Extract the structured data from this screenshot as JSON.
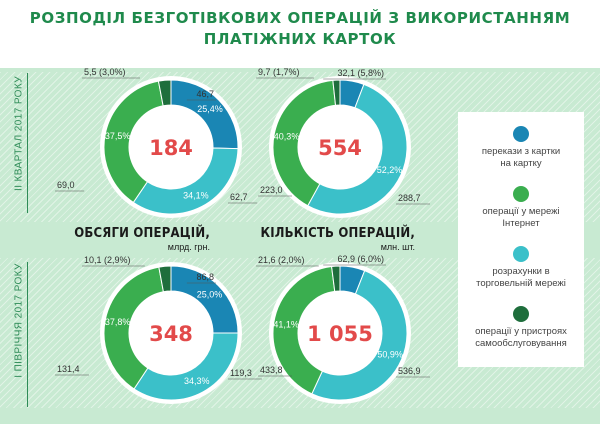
{
  "title_line1": "РОЗПОДІЛ БЕЗГОТІВКОВИХ ОПЕРАЦІЙ З ВИКОРИСТАННЯМ",
  "title_line2": "ПЛАТІЖНИХ КАРТОК",
  "row_labels": [
    "ІІ КВАРТАЛ 2017 РОКУ",
    "І ПІВРІЧЧЯ 2017 РОКУ"
  ],
  "column_labels": {
    "volume": {
      "title": "ОБСЯГИ ОПЕРАЦІЙ,",
      "unit": "млрд. грн."
    },
    "count": {
      "title": "КІЛЬКІСТЬ ОПЕРАЦІЙ,",
      "unit": "млн. шт."
    }
  },
  "colors": {
    "transfers": "#1a86b4",
    "internet": "#3aae4f",
    "retail": "#3bc0c9",
    "selfservice": "#1e6e3c"
  },
  "legend": [
    {
      "key": "transfers",
      "label_line1": "перекази з картки",
      "label_line2": "на картку"
    },
    {
      "key": "internet",
      "label_line1": "операції у мережі",
      "label_line2": "Інтернет"
    },
    {
      "key": "retail",
      "label_line1": "розрахунки в",
      "label_line2": "торговельній мережі"
    },
    {
      "key": "selfservice",
      "label_line1": "операції у пристроях",
      "label_line2": "самообслуговування"
    }
  ],
  "chart_data": [
    {
      "type": "pie",
      "row": "ІІ КВАРТАЛ 2017 РОКУ",
      "column": "ОБСЯГИ ОПЕРАЦІЙ",
      "total": "184",
      "slices": [
        {
          "key": "transfers",
          "value": "46,7",
          "percent": "25,4%"
        },
        {
          "key": "retail",
          "value": "62,7",
          "percent": "34,1%"
        },
        {
          "key": "internet",
          "value": "69,0",
          "percent": "37,5%"
        },
        {
          "key": "selfservice",
          "value": "5,5",
          "percent": "3,0%"
        }
      ]
    },
    {
      "type": "pie",
      "row": "ІІ КВАРТАЛ 2017 РОКУ",
      "column": "КІЛЬКІСТЬ ОПЕРАЦІЙ",
      "total": "554",
      "slices": [
        {
          "key": "transfers",
          "value": "32,1",
          "percent": "5,8%"
        },
        {
          "key": "retail",
          "value": "288,7",
          "percent": "52,2%"
        },
        {
          "key": "internet",
          "value": "223,0",
          "percent": "40,3%"
        },
        {
          "key": "selfservice",
          "value": "9,7",
          "percent": "1,7%"
        }
      ]
    },
    {
      "type": "pie",
      "row": "І ПІВРІЧЧЯ 2017 РОКУ",
      "column": "ОБСЯГИ ОПЕРАЦІЙ",
      "total": "348",
      "slices": [
        {
          "key": "transfers",
          "value": "86,8",
          "percent": "25,0%"
        },
        {
          "key": "retail",
          "value": "119,3",
          "percent": "34,3%"
        },
        {
          "key": "internet",
          "value": "131,4",
          "percent": "37,8%"
        },
        {
          "key": "selfservice",
          "value": "10,1",
          "percent": "2,9%"
        }
      ]
    },
    {
      "type": "pie",
      "row": "І ПІВРІЧЧЯ 2017 РОКУ",
      "column": "КІЛЬКІСТЬ ОПЕРАЦІЙ",
      "total": "1 055",
      "slices": [
        {
          "key": "transfers",
          "value": "62,9",
          "percent": "6,0%"
        },
        {
          "key": "retail",
          "value": "536,9",
          "percent": "50,9%"
        },
        {
          "key": "internet",
          "value": "433,8",
          "percent": "41,1%"
        },
        {
          "key": "selfservice",
          "value": "21,6",
          "percent": "2,0%"
        }
      ]
    }
  ]
}
